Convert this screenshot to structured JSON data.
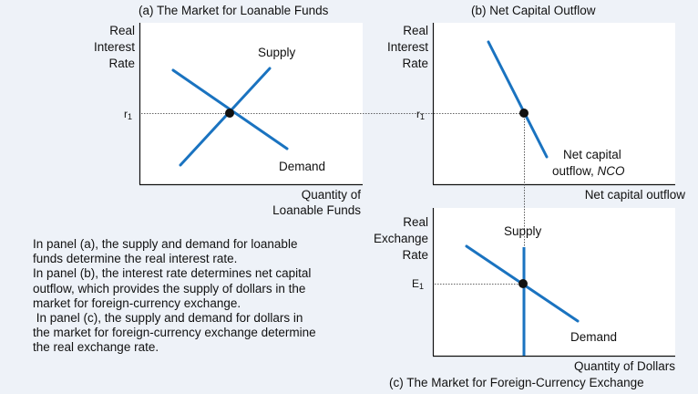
{
  "panel_a": {
    "title": "(a) The Market for Loanable Funds",
    "y_label_lines": [
      "Real",
      "Interest",
      "Rate"
    ],
    "x_label_lines": [
      "Quantity of",
      "Loanable Funds"
    ],
    "tick_main": "r",
    "tick_sub": "1",
    "supply_label": "Supply",
    "demand_label": "Demand"
  },
  "panel_b": {
    "title": "(b) Net Capital Outflow",
    "y_label_lines": [
      "Real",
      "Interest",
      "Rate"
    ],
    "x_label": "Net capital outflow",
    "tick_main": "r",
    "tick_sub": "1",
    "curve_label_line1": "Net capital",
    "curve_label_line2_prefix": "outflow, ",
    "curve_label_line2_italic": "NCO"
  },
  "panel_c": {
    "title": "(c) The Market for Foreign-Currency Exchange",
    "y_label_lines": [
      "Real",
      "Exchange",
      "Rate"
    ],
    "x_label": "Quantity of Dollars",
    "tick_main": "E",
    "tick_sub": "1",
    "supply_label": "Supply",
    "demand_label": "Demand"
  },
  "explanation": [
    "In panel (a), the supply and demand for loanable",
    "funds determine the real interest rate.",
    "In panel (b), the interest rate  determines net capital",
    "outflow, which provides the supply of dollars in the",
    "market for foreign-currency exchange.",
    " In panel (c), the supply and demand for dollars in",
    "the market for foreign-currency exchange determine",
    "the real exchange rate."
  ],
  "colors": {
    "curve": "#1a73c0",
    "background": "#eef2f8",
    "panel": "#ffffff",
    "point": "#111111"
  }
}
